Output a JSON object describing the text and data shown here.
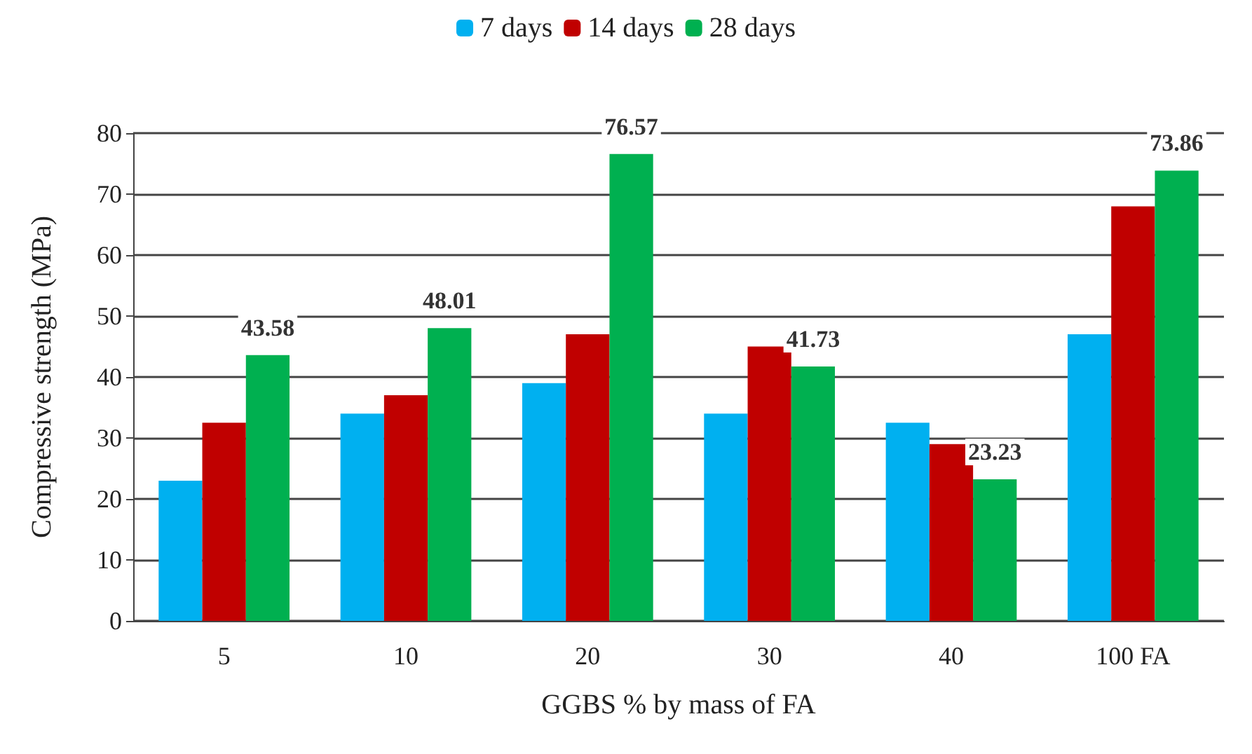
{
  "chart_data": {
    "type": "bar",
    "xlabel": "GGBS % by mass of FA",
    "ylabel": "Compressive strength (MPa)",
    "categories": [
      "5",
      "10",
      "20",
      "30",
      "40",
      "100 FA"
    ],
    "series": [
      {
        "name": "7 days",
        "color": "#00b0f0",
        "values": [
          23,
          34,
          39,
          34,
          32.5,
          47
        ]
      },
      {
        "name": "14 days",
        "color": "#c00000",
        "values": [
          32.5,
          37,
          47,
          45,
          29,
          68
        ]
      },
      {
        "name": "28 days",
        "color": "#00b050",
        "values": [
          43.58,
          48.01,
          76.57,
          41.73,
          23.23,
          73.86
        ],
        "value_labels": [
          "43.58",
          "48.01",
          "76.57",
          "41.73",
          "23.23",
          "73.86"
        ]
      }
    ],
    "ylim": [
      0,
      80
    ],
    "yticks": [
      0,
      10,
      20,
      30,
      40,
      50,
      60,
      70,
      80
    ],
    "grid": "y",
    "legend": "top"
  }
}
